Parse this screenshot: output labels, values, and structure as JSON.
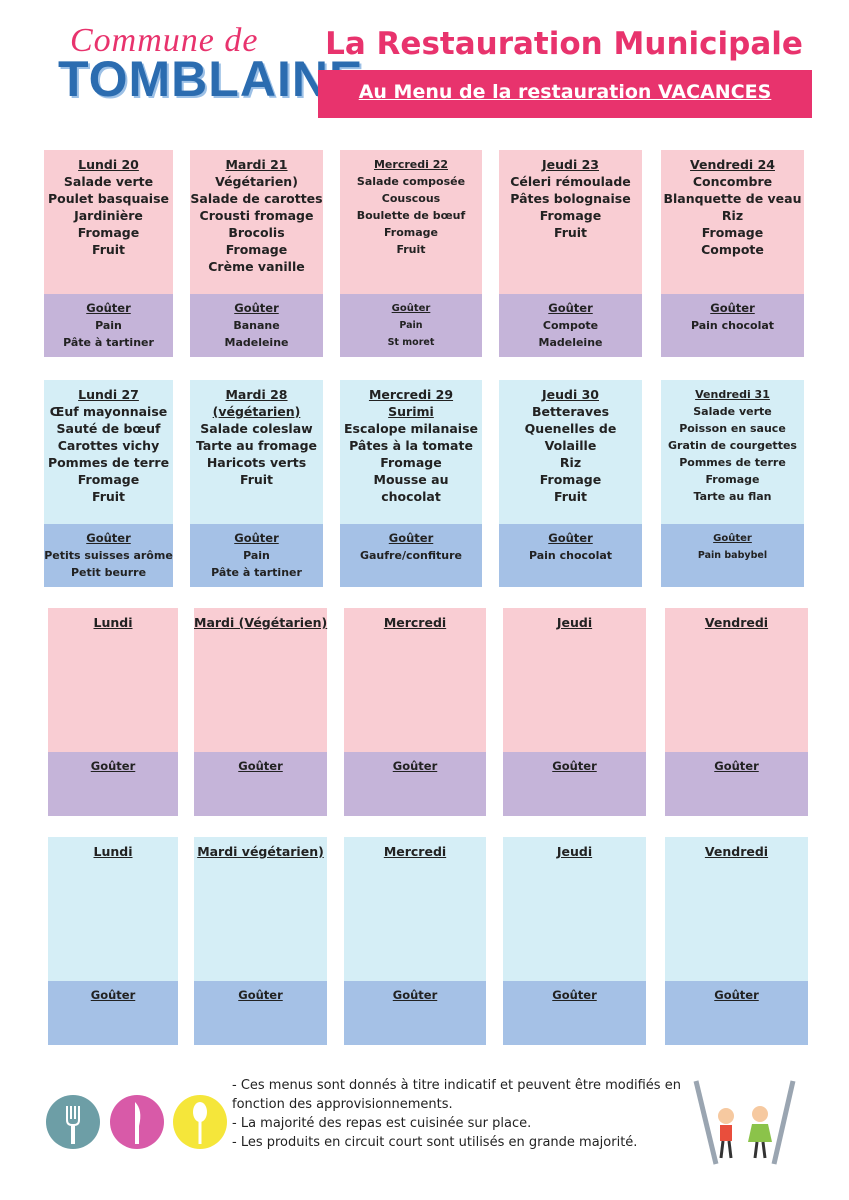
{
  "header": {
    "logo_top": "Commune de",
    "logo_main": "TOMBLAINE",
    "title": "La Restauration Municipale",
    "subtitle": "Au Menu  de la restauration VACANCES"
  },
  "weeks": [
    {
      "days": [
        {
          "header": [
            "Lundi 20"
          ],
          "items": [
            "Salade verte",
            "Poulet basquaise",
            "Jardinière",
            "Fromage",
            "Fruit"
          ],
          "gouter": {
            "title": "Goûter",
            "items": [
              "Pain",
              "Pâte à tartiner"
            ]
          }
        },
        {
          "header": [
            "Mardi  21"
          ],
          "items": [
            "Végétarien)",
            "Salade de carottes",
            "Crousti fromage",
            "Brocolis",
            "Fromage",
            "Crème vanille"
          ],
          "gouter": {
            "title": "Goûter",
            "items": [
              "Banane",
              "Madeleine"
            ]
          }
        },
        {
          "header": [
            "Mercredi 22"
          ],
          "items": [
            "Salade composée",
            "Couscous",
            "Boulette de bœuf",
            "Fromage",
            "Fruit"
          ],
          "gouter": {
            "title": "Goûter",
            "items": [
              "Pain",
              "St moret"
            ]
          }
        },
        {
          "header": [
            "Jeudi 23"
          ],
          "items": [
            "Céleri rémoulade",
            "Pâtes bolognaise",
            "Fromage",
            "Fruit"
          ],
          "gouter": {
            "title": "Goûter",
            "items": [
              "Compote",
              "Madeleine"
            ]
          }
        },
        {
          "header": [
            "Vendredi 24"
          ],
          "items": [
            "Concombre",
            "Blanquette de veau",
            "Riz",
            "Fromage",
            "Compote"
          ],
          "gouter": {
            "title": "Goûter",
            "items": [
              "Pain chocolat"
            ]
          }
        }
      ]
    },
    {
      "days": [
        {
          "header": [
            "Lundi 27"
          ],
          "items": [
            "Œuf mayonnaise",
            "Sauté de bœuf",
            "Carottes vichy",
            "Pommes de terre",
            "Fromage",
            "Fruit"
          ],
          "gouter": {
            "title": "Goûter",
            "items": [
              "Petits suisses arôme",
              "Petit beurre"
            ]
          }
        },
        {
          "header": [
            "Mardi  28",
            "(végétarien)"
          ],
          "items": [
            "Salade coleslaw",
            "Tarte au fromage",
            "Haricots verts",
            "Fruit"
          ],
          "gouter": {
            "title": "Goûter",
            "items": [
              "Pain",
              "Pâte à tartiner"
            ]
          }
        },
        {
          "header": [
            "Mercredi 29",
            "Surimi"
          ],
          "items": [
            "Escalope milanaise",
            "Pâtes à la tomate",
            "Fromage",
            "Mousse au",
            "chocolat"
          ],
          "gouter": {
            "title": "Goûter",
            "items": [
              "Gaufre/confiture"
            ]
          }
        },
        {
          "header": [
            "Jeudi 30"
          ],
          "items": [
            "Betteraves",
            "Quenelles de",
            "Volaille",
            "Riz",
            "Fromage",
            "Fruit"
          ],
          "gouter": {
            "title": "Goûter",
            "items": [
              "Pain chocolat"
            ]
          }
        },
        {
          "header": [
            "Vendredi 31"
          ],
          "items": [
            "Salade verte",
            "Poisson en sauce",
            "Gratin de courgettes",
            "Pommes de terre",
            "Fromage",
            "Tarte au flan"
          ],
          "gouter": {
            "title": "Goûter",
            "items": [
              "Pain babybel"
            ]
          }
        }
      ]
    },
    {
      "days": [
        {
          "header": [
            "Lundi"
          ],
          "items": [],
          "gouter": {
            "title": "Goûter",
            "items": []
          }
        },
        {
          "header": [
            "Mardi (Végétarien)"
          ],
          "items": [],
          "gouter": {
            "title": "Goûter",
            "items": []
          }
        },
        {
          "header": [
            "Mercredi"
          ],
          "items": [],
          "gouter": {
            "title": "Goûter",
            "items": []
          }
        },
        {
          "header": [
            "Jeudi"
          ],
          "items": [],
          "gouter": {
            "title": "Goûter",
            "items": []
          }
        },
        {
          "header": [
            "Vendredi"
          ],
          "items": [],
          "gouter": {
            "title": "Goûter",
            "items": []
          }
        }
      ]
    },
    {
      "days": [
        {
          "header": [
            "Lundi"
          ],
          "items": [],
          "gouter": {
            "title": "Goûter",
            "items": []
          }
        },
        {
          "header": [
            "Mardi  végétarien)"
          ],
          "items": [],
          "gouter": {
            "title": "Goûter",
            "items": []
          }
        },
        {
          "header": [
            "Mercredi"
          ],
          "items": [],
          "gouter": {
            "title": "Goûter",
            "items": []
          }
        },
        {
          "header": [
            "Jeudi"
          ],
          "items": [],
          "gouter": {
            "title": "Goûter",
            "items": []
          }
        },
        {
          "header": [
            "Vendredi"
          ],
          "items": [],
          "gouter": {
            "title": "Goûter",
            "items": []
          }
        }
      ]
    }
  ],
  "notes": [
    "- Ces menus sont donnés à titre indicatif et peuvent être modifiés en fonction des approvisionnements.",
    "- La majorité des repas est cuisinée sur place.",
    "- Les produits en circuit court sont utilisés en grande majorité."
  ]
}
